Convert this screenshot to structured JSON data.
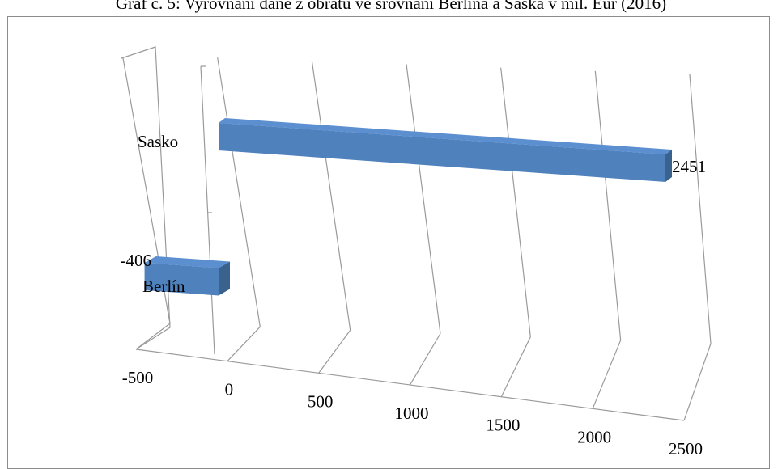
{
  "chart_data": {
    "type": "bar",
    "orientation": "horizontal",
    "style": "3d",
    "title": "Graf č. 5: Vyrovnání daně z obratu ve srovnání Berlína a Saska v mil. Eur (2016)",
    "categories": [
      "Berlín",
      "Sasko"
    ],
    "values": [
      -406,
      2451
    ],
    "data_labels": [
      "-406",
      "2451"
    ],
    "xlim": [
      -500,
      2500
    ],
    "x_ticks": [
      "-500",
      "0",
      "500",
      "1000",
      "1500",
      "2000",
      "2500"
    ],
    "grid": true,
    "legend": "none",
    "colors": {
      "bar_front": "#4f81bd",
      "bar_top": "#5b8fd0",
      "bar_side": "#3a628f",
      "gridline": "#9a9a9a"
    }
  }
}
